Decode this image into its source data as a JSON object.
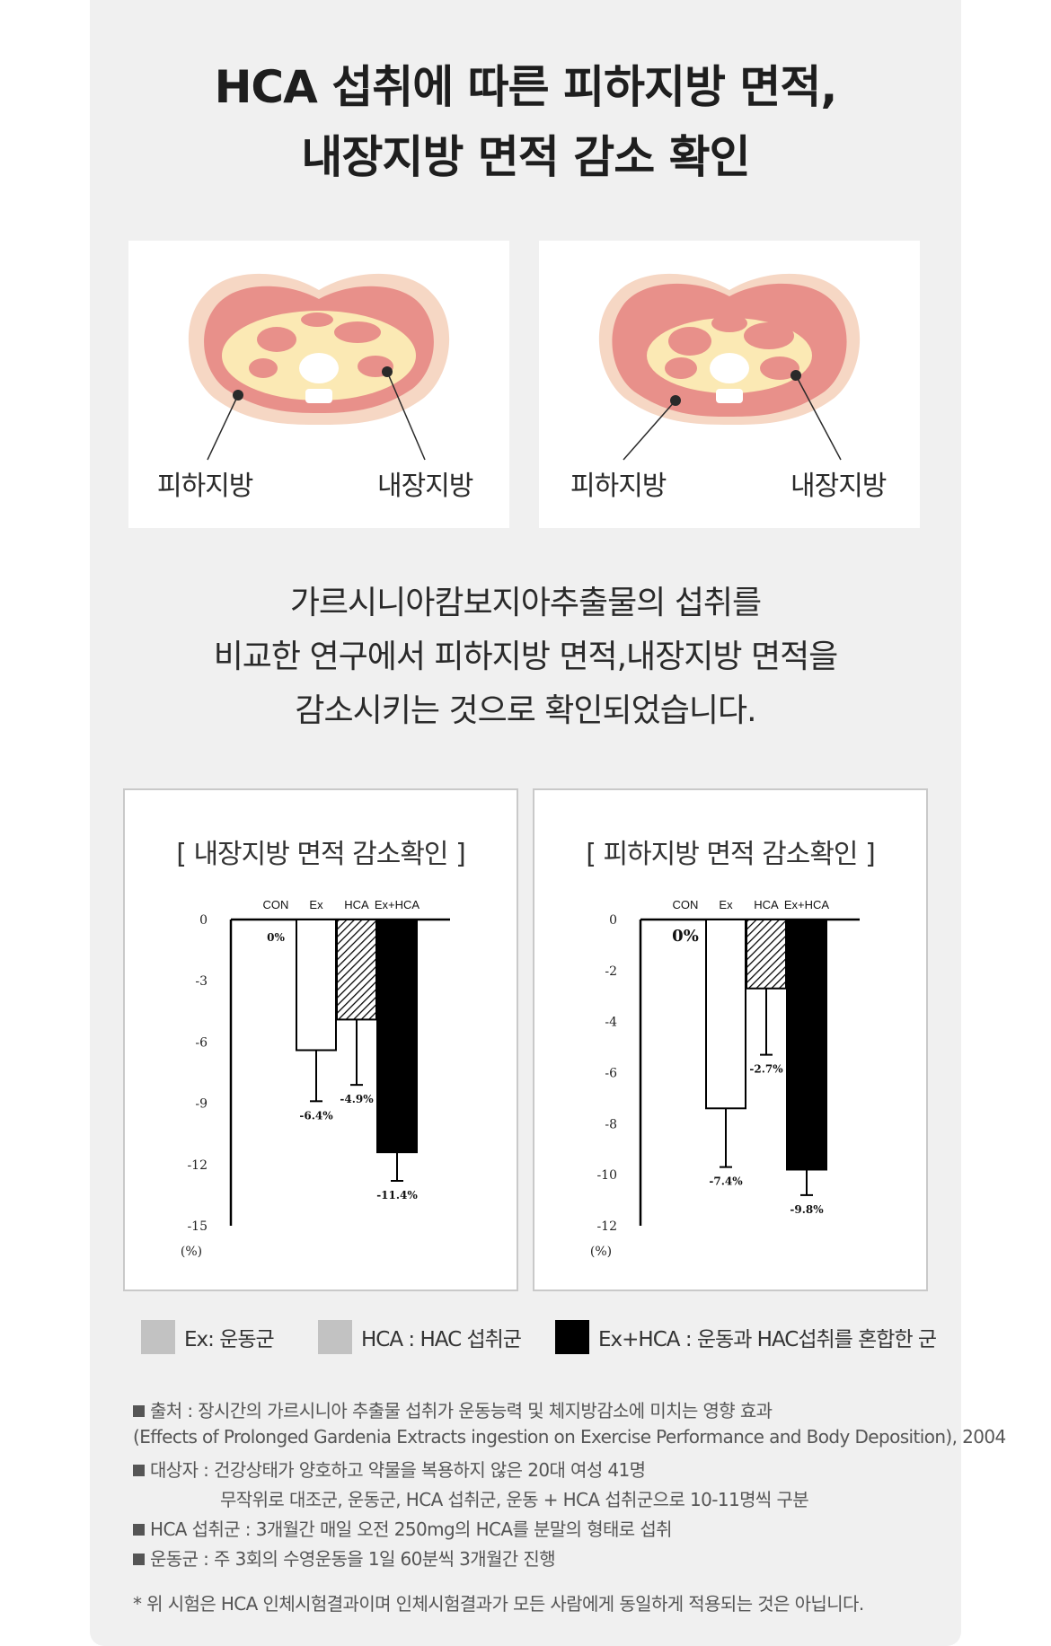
{
  "title": {
    "line1": "HCA 섭취에 따른 피하지방 면적,",
    "line2": "내장지방 면적 감소 확인"
  },
  "images": [
    {
      "label_left": "피하지방",
      "label_right": "내장지방"
    },
    {
      "label_left": "피하지방",
      "label_right": "내장지방"
    }
  ],
  "description": {
    "line1": "가르시니아캄보지아추출물의 섭취를",
    "line2": "비교한 연구에서 피하지방 면적,내장지방 면적을",
    "line3": "감소시키는 것으로 확인되었습니다."
  },
  "chart_data": [
    {
      "type": "bar",
      "title": "[ 내장지방 면적 감소확인 ]",
      "categories": [
        "CON",
        "Ex",
        "HCA",
        "Ex+HCA"
      ],
      "values": [
        0,
        -6.4,
        -4.9,
        -11.4
      ],
      "error_low": [
        0,
        -8.9,
        -8.1,
        -12.8
      ],
      "data_labels": [
        "0%",
        "-6.4%",
        "-4.9%",
        "-11.4%"
      ],
      "fills": [
        "#ffffff",
        "#ffffff",
        "hatch",
        "#000000"
      ],
      "ylim": [
        -15,
        0
      ],
      "yticks": [
        "0",
        "-3",
        "-6",
        "-9",
        "-12",
        "-15"
      ],
      "yunit": "(%)"
    },
    {
      "type": "bar",
      "title": "[ 피하지방 면적 감소확인 ]",
      "categories": [
        "CON",
        "Ex",
        "HCA",
        "Ex+HCA"
      ],
      "values": [
        0,
        -7.4,
        -2.7,
        -9.8
      ],
      "error_low": [
        0,
        -9.7,
        -5.3,
        -10.8
      ],
      "data_labels": [
        "0%",
        "-7.4%",
        "-2.7%",
        "-9.8%"
      ],
      "fills": [
        "#ffffff",
        "#ffffff",
        "hatch",
        "#000000"
      ],
      "ylim": [
        -12,
        0
      ],
      "yticks": [
        "0",
        "-2",
        "-4",
        "-6",
        "-8",
        "-10",
        "-12"
      ],
      "yunit": "(%)"
    }
  ],
  "legend": [
    {
      "text": "Ex: 운동군",
      "color": "#c2c2c2"
    },
    {
      "text": "HCA : HAC 섭취군",
      "color": "#c2c2c2"
    },
    {
      "text": "Ex+HCA : 운동과 HAC섭취를 혼합한 군",
      "color": "#000000"
    }
  ],
  "notes": {
    "source": "출처 : 장시간의 가르시니아 추출물 섭취가 운동능력 및 체지방감소에 미치는 영향 효과",
    "source_en": "(Effects of Prolonged Gardenia Extracts ingestion on Exercise Performance and Body Deposition), 2004",
    "subjects": "대상자 : 건강상태가 양호하고 약물을 복용하지 않은 20대 여성 41명",
    "subjects_2": "무작위로 대조군, 운동군, HCA 섭취군, 운동 + HCA 섭취군으로 10-11명씩 구분",
    "hca_group": "HCA 섭취군 : 3개월간 매일 오전 250mg의 HCA를 분말의 형태로 섭취",
    "exercise_group": "운동군 : 주 3회의 수영운동을 1일 60분씩 3개월간 진행",
    "disclaimer": "* 위 시험은 HCA 인체시험결과이며 인체시험결과가 모든 사람에게 동일하게 적용되는 것은 아닙니다."
  },
  "colors": {
    "panel_bg": "#f0f0f0",
    "subcutaneous_fat": "#e8908a",
    "visceral_fat": "#fbe9b4",
    "outer_skin": "#f6d7c4"
  }
}
